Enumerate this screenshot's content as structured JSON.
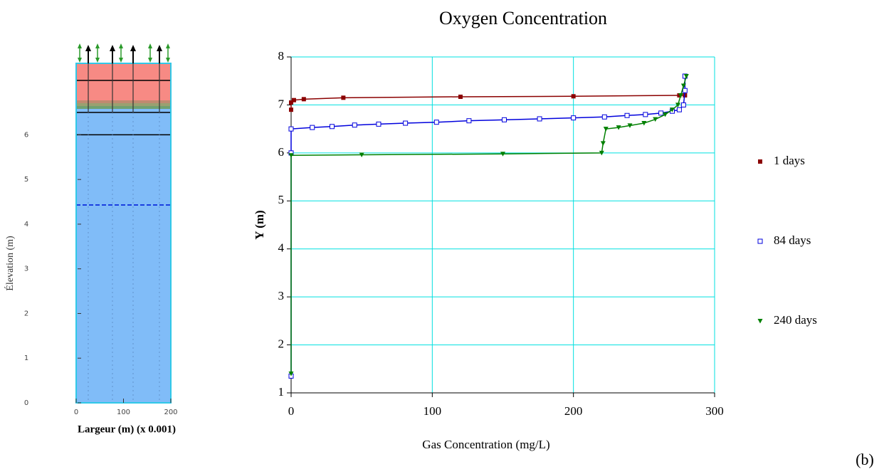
{
  "chart_data": {
    "type": "line",
    "title": "Oxygen Concentration",
    "x_label": "Gas Concentration (mg/L)",
    "y_label": "Y (m)",
    "xlim": [
      0,
      300
    ],
    "ylim": [
      1,
      8
    ],
    "xticks": [
      0,
      100,
      200,
      300
    ],
    "yticks": [
      1,
      2,
      3,
      4,
      5,
      6,
      7,
      8
    ],
    "grid": true,
    "grid_color": "#00e0e0",
    "series": [
      {
        "name": "1 days",
        "color": "#8b0000",
        "marker": "filled-square",
        "x": [
          0,
          0,
          2,
          9,
          37,
          120,
          200,
          275,
          279
        ],
        "values": [
          6.9,
          7.05,
          7.1,
          7.12,
          7.15,
          7.17,
          7.18,
          7.2,
          7.2
        ]
      },
      {
        "name": "84 days",
        "color": "#0000dd",
        "marker": "open-square",
        "x": [
          0,
          0,
          0,
          15,
          29,
          45,
          62,
          81,
          103,
          126,
          151,
          176,
          200,
          222,
          238,
          251,
          262,
          270,
          275,
          278,
          279,
          279
        ],
        "values": [
          1.35,
          6.0,
          6.5,
          6.53,
          6.55,
          6.58,
          6.6,
          6.62,
          6.64,
          6.67,
          6.69,
          6.71,
          6.73,
          6.75,
          6.78,
          6.8,
          6.83,
          6.87,
          6.9,
          7.0,
          7.3,
          7.6
        ]
      },
      {
        "name": "240 days",
        "color": "#008000",
        "marker": "triangle-down",
        "x": [
          0,
          0,
          50,
          150,
          220,
          221,
          223,
          232,
          240,
          250,
          258,
          265,
          270,
          274,
          276,
          278,
          280
        ],
        "values": [
          1.4,
          5.95,
          5.96,
          5.98,
          6.0,
          6.2,
          6.5,
          6.53,
          6.57,
          6.62,
          6.7,
          6.8,
          6.9,
          7.0,
          7.2,
          7.4,
          7.6
        ]
      }
    ]
  },
  "column_diagram": {
    "x_label": "Largeur (m) (x 0.001)",
    "y_label": "Élevation (m)",
    "xlim": [
      0,
      200
    ],
    "ylim": [
      0,
      7.6
    ],
    "xticks": [
      0,
      100,
      200
    ],
    "yticks": [
      0,
      1,
      2,
      3,
      4,
      5,
      6
    ],
    "layer_boundary": 6,
    "water_table": 4.43
  },
  "panel_label": "(b)"
}
